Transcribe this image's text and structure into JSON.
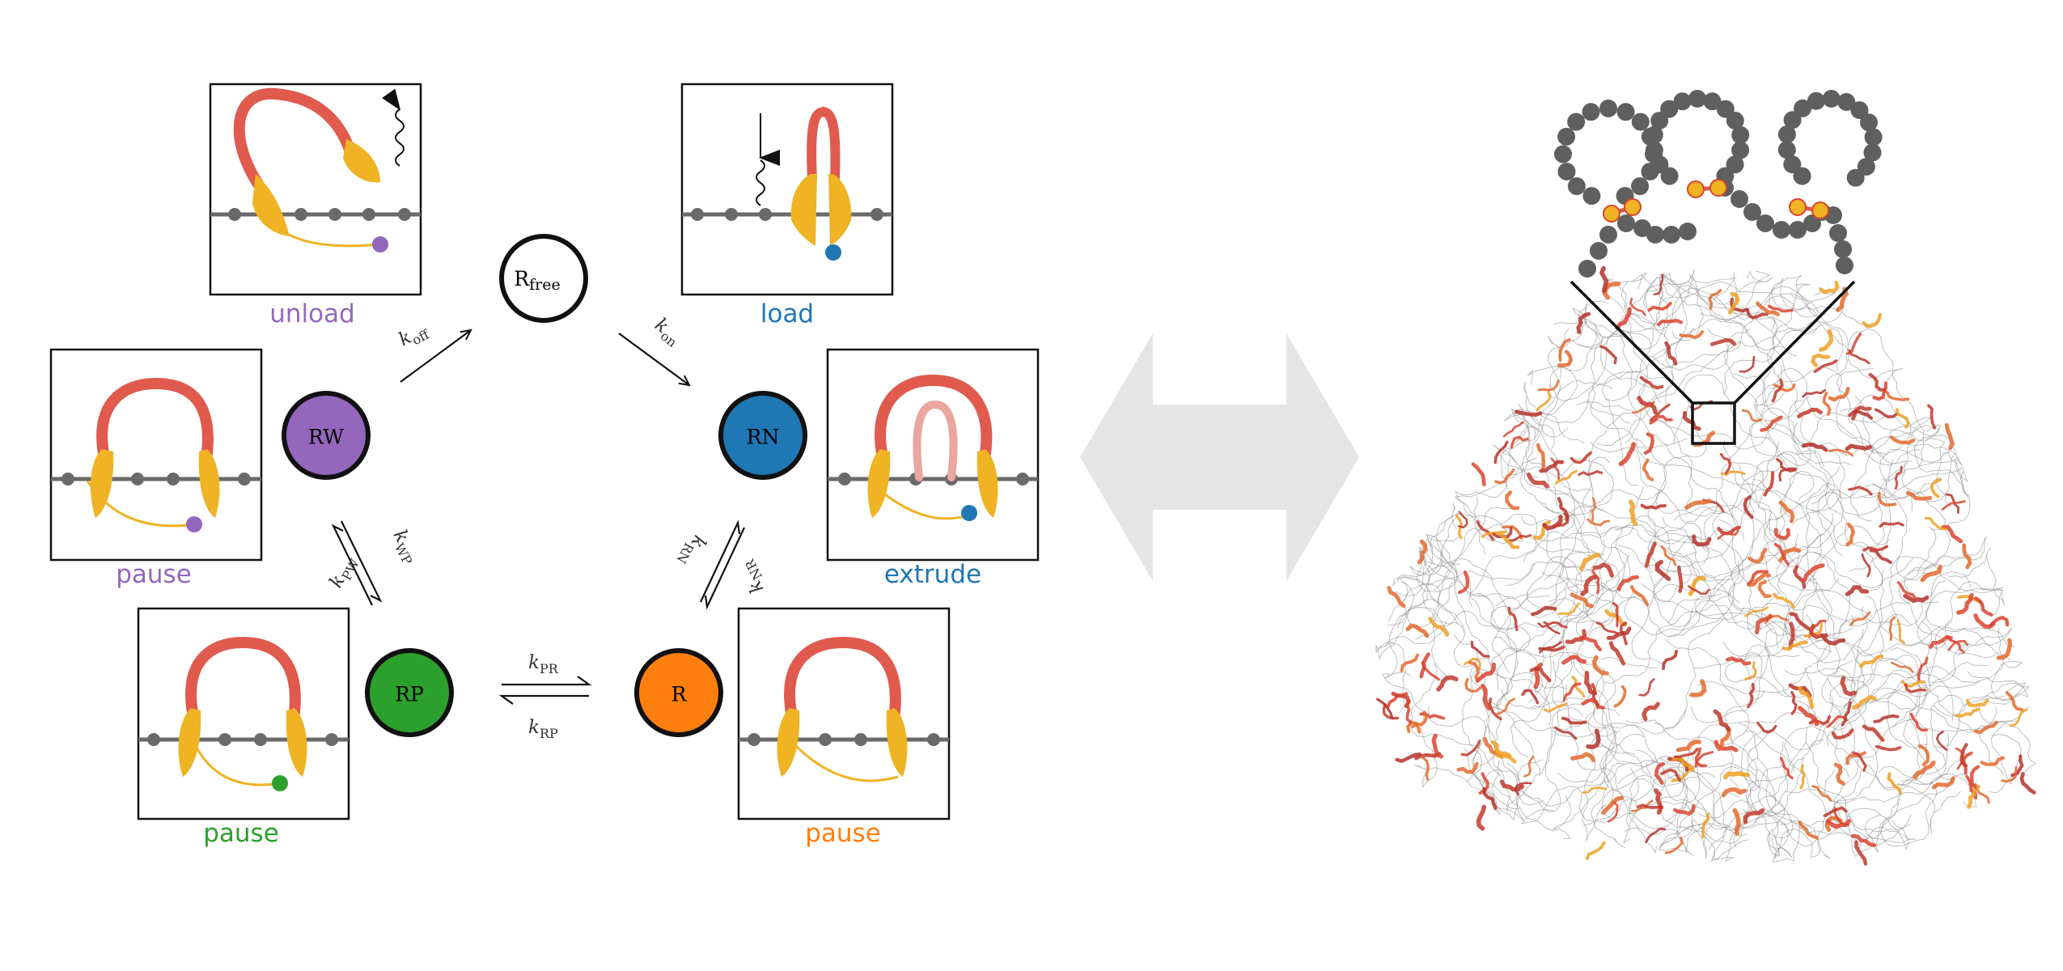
{
  "colors": {
    "cohesin_arm": "#e05a4e",
    "cohesin_arm_light": "#eaa69f",
    "cohesin_head": "#efb323",
    "dna": "#6a6a6a",
    "pause_green": "#2ca02c",
    "extrude_blue": "#1f77b4",
    "pause_orange": "#ff7f0e",
    "unload_purple": "#9467bd",
    "arrow_gray": "#e5e5e5"
  },
  "states": {
    "r_free": {
      "label": "R",
      "sub": "free"
    },
    "rw": {
      "label": "RW"
    },
    "rn": {
      "label": "RN"
    },
    "rp": {
      "label": "RP"
    },
    "r": {
      "label": "R"
    }
  },
  "rates": {
    "k_off": {
      "k": "k",
      "sub": "off"
    },
    "k_on": {
      "k": "k",
      "sub": "on"
    },
    "k_pw": {
      "k": "k",
      "sub": "PW"
    },
    "k_wp": {
      "k": "k",
      "sub": "WP"
    },
    "k_rn": {
      "k": "k",
      "sub": "RN"
    },
    "k_nr": {
      "k": "k",
      "sub": "NR"
    },
    "k_pr": {
      "k": "k",
      "sub": "PR"
    },
    "k_rp": {
      "k": "k",
      "sub": "RP"
    }
  },
  "captions": {
    "unload": "unload",
    "load": "load",
    "pause_rw": "pause",
    "extrude": "extrude",
    "pause_rp": "pause",
    "pause_r": "pause"
  }
}
